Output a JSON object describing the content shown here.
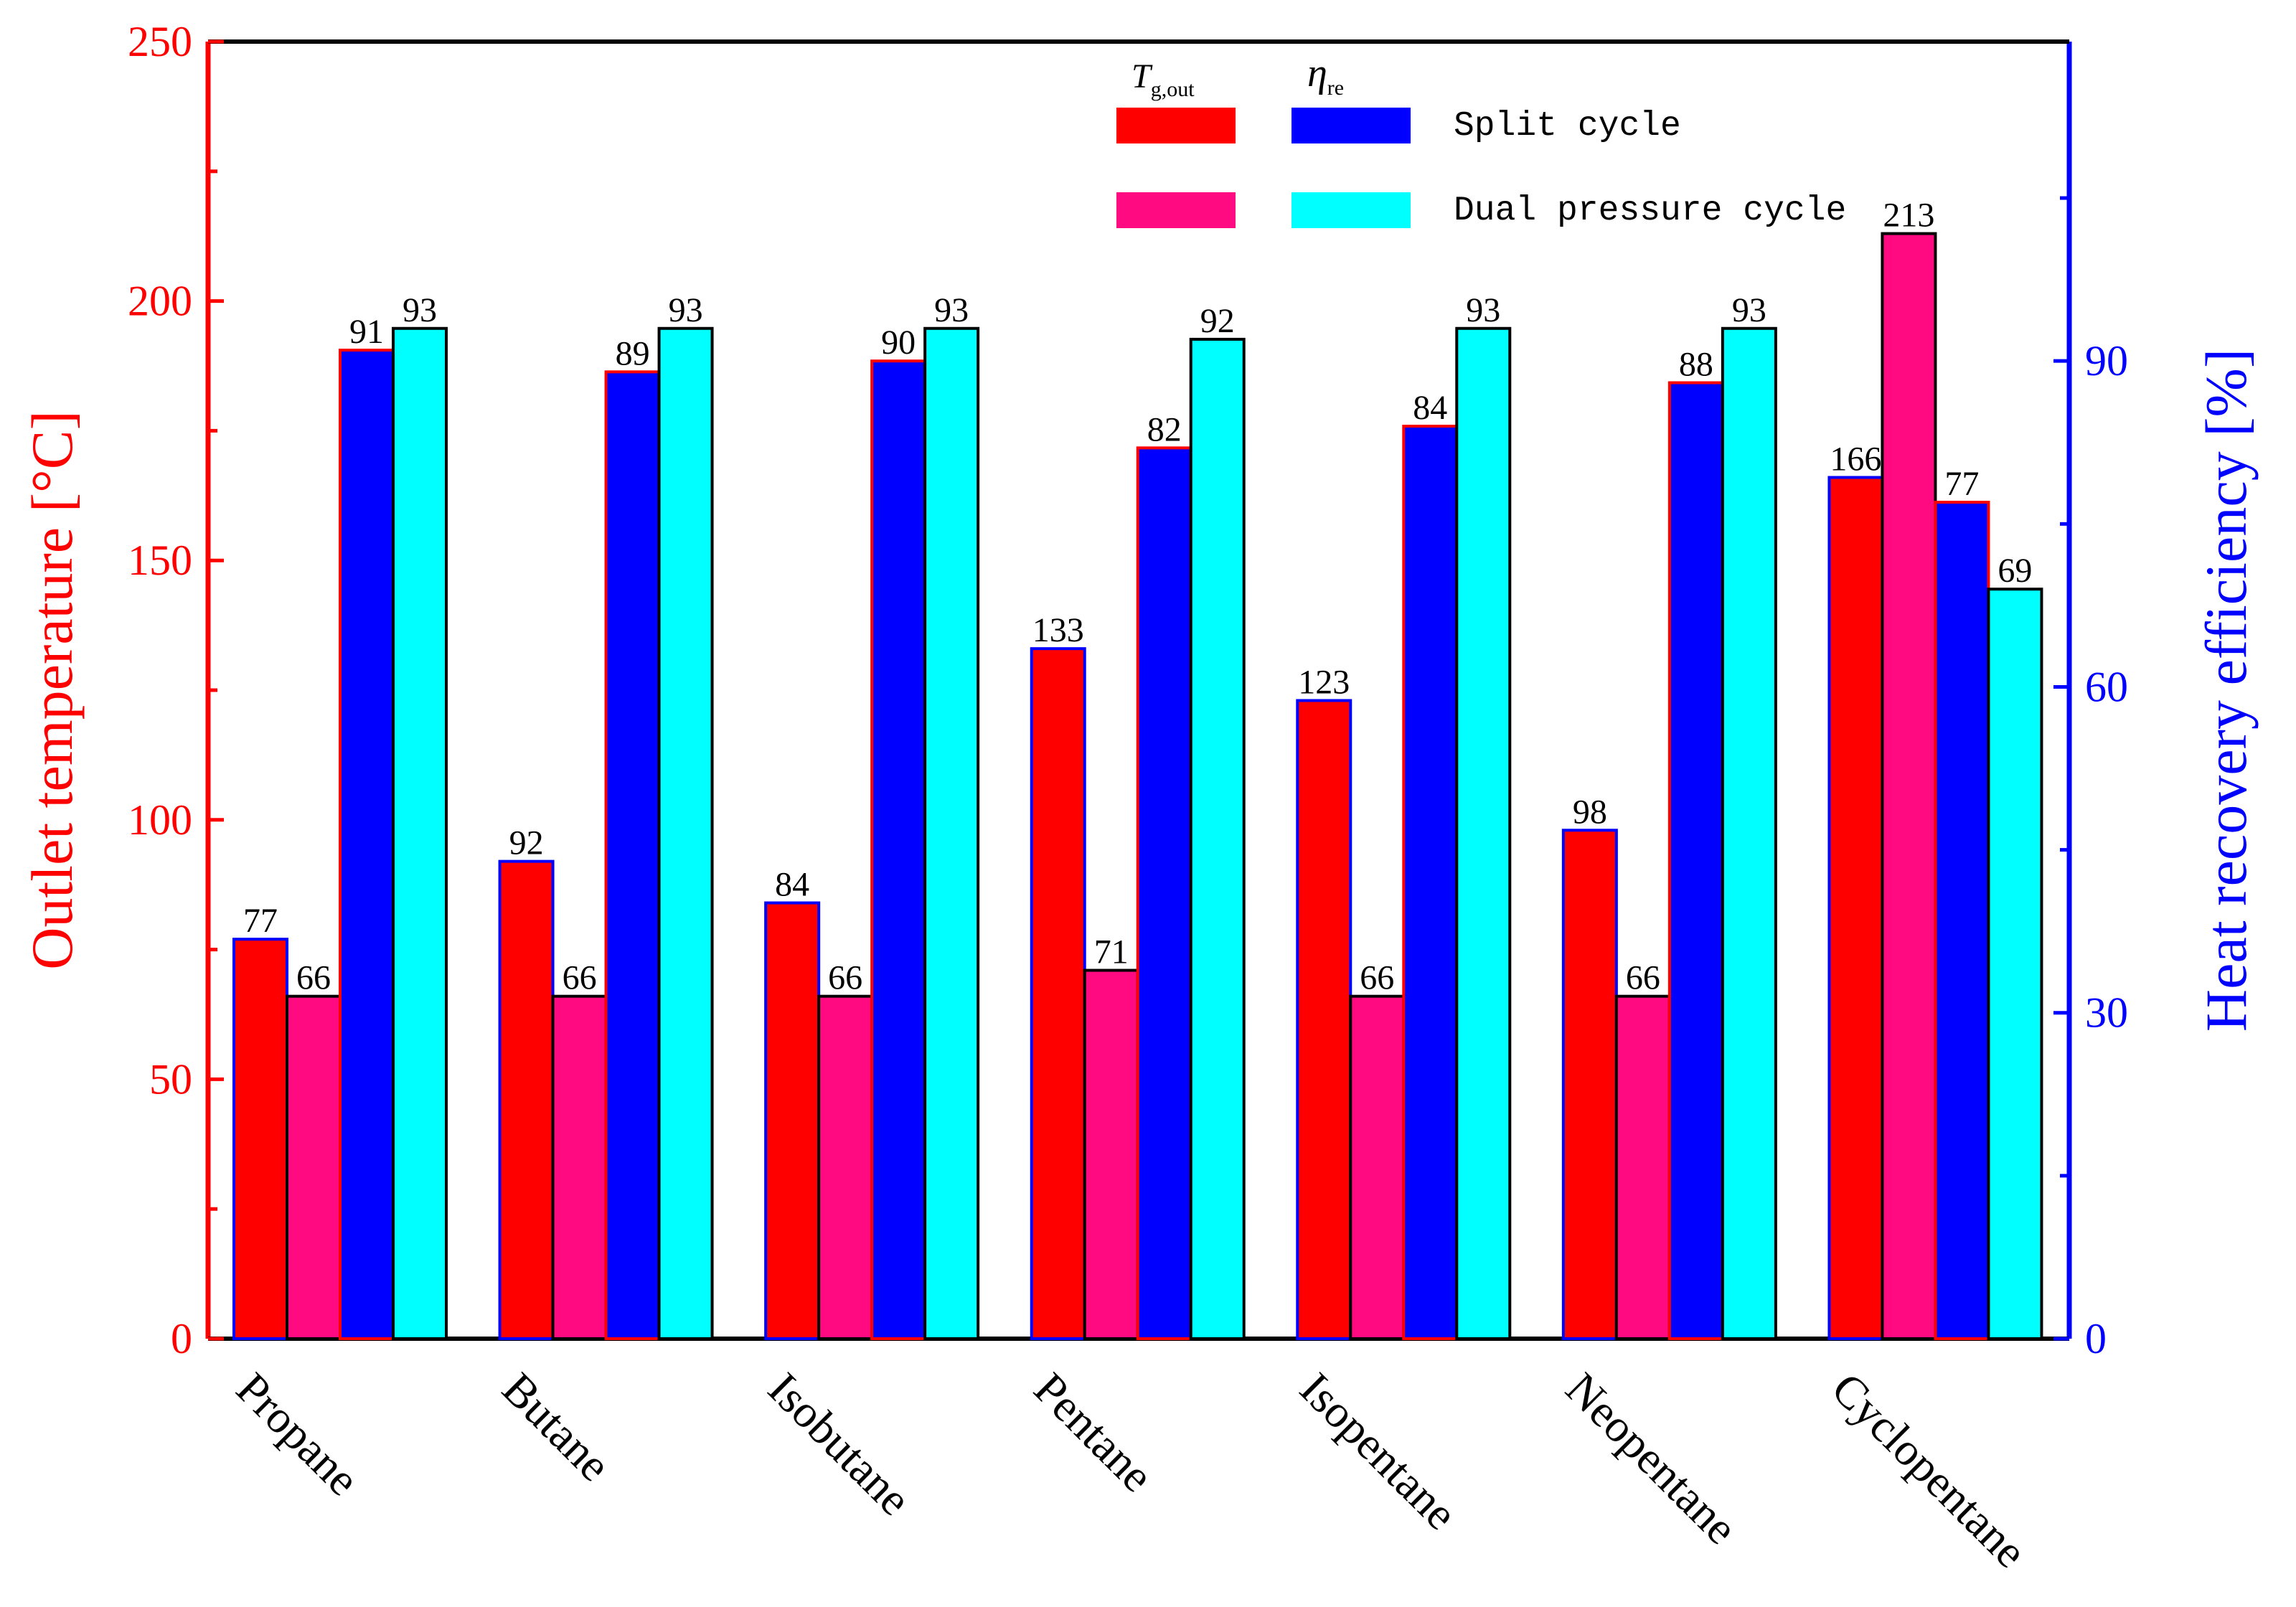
{
  "chart_data": {
    "type": "bar",
    "categories": [
      "Propane",
      "Butane",
      "Isobutane",
      "Pentane",
      "Isopentane",
      "Neopentane",
      "Cyclopentane"
    ],
    "series": [
      {
        "name": "Split cycle",
        "quantity": "T_g,out",
        "axis": "left",
        "color": "#ff0000",
        "edge": "#0000ff",
        "values": [
          77,
          92,
          84,
          133,
          123,
          98,
          166
        ]
      },
      {
        "name": "Dual pressure cycle",
        "quantity": "T_g,out",
        "axis": "left",
        "color": "#ff0a80",
        "edge": "#000000",
        "values": [
          66,
          66,
          66,
          71,
          66,
          66,
          213
        ]
      },
      {
        "name": "Split cycle",
        "quantity": "eta_re",
        "axis": "right",
        "color": "#0000ff",
        "edge": "#ff0000",
        "values": [
          91,
          89,
          90,
          82,
          84,
          88,
          77
        ]
      },
      {
        "name": "Dual pressure cycle",
        "quantity": "eta_re",
        "axis": "right",
        "color": "#00ffff",
        "edge": "#000000",
        "values": [
          93,
          93,
          93,
          92,
          93,
          93,
          69
        ]
      }
    ],
    "left_axis": {
      "label": "Outlet temperature [°C]",
      "range": [
        0,
        250
      ],
      "ticks": [
        0,
        50,
        100,
        150,
        200,
        250
      ],
      "color": "#ff0000"
    },
    "right_axis": {
      "label": "Heat recovery efficiency [%]",
      "range": [
        0,
        119.4
      ],
      "ticks": [
        0,
        30,
        60,
        90
      ],
      "color": "#0000ff"
    },
    "legend": {
      "header_t": "T",
      "header_t_sub": "g,out",
      "header_eta": "η",
      "header_eta_sub": "re",
      "rows": [
        "Split cycle",
        "Dual pressure cycle"
      ],
      "position": "top-right"
    },
    "grid": false
  }
}
